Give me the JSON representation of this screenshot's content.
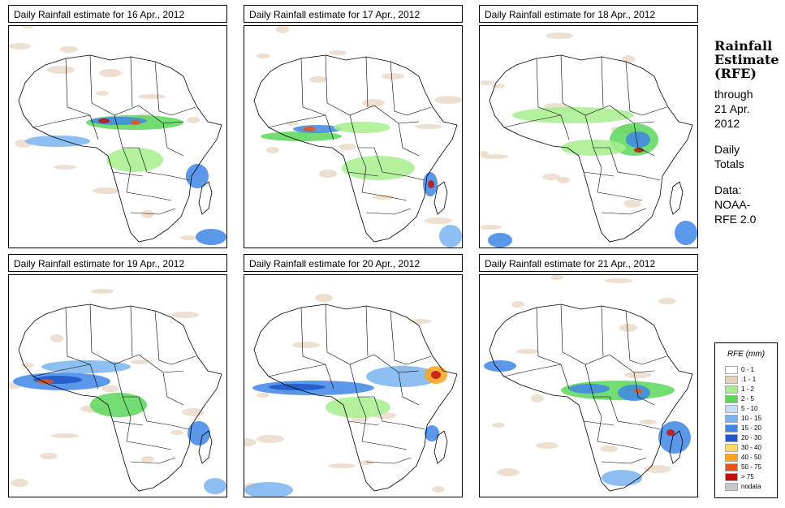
{
  "panels": [
    {
      "title": "Daily Rainfall estimate for  16 Apr., 2012"
    },
    {
      "title": "Daily Rainfall estimate for  17 Apr., 2012"
    },
    {
      "title": "Daily Rainfall estimate for  18 Apr., 2012"
    },
    {
      "title": "Daily Rainfall estimate for  19 Apr., 2012"
    },
    {
      "title": "Daily Rainfall estimate for  20 Apr., 2012"
    },
    {
      "title": "Daily Rainfall estimate for  21 Apr., 2012"
    }
  ],
  "sidebar": {
    "heading_line1": "Rainfall",
    "heading_line2": "Estimate",
    "heading_line3": "(RFE)",
    "through": "through",
    "date_line1": "21 Apr.",
    "date_line2": "2012",
    "daily": "Daily",
    "totals": "Totals",
    "data_label": "Data:",
    "source_line1": "NOAA-",
    "source_line2": "RFE 2.0"
  },
  "legend": {
    "title": "RFE (mm)",
    "items": [
      {
        "label": "0 - 1",
        "color": "#ffffff"
      },
      {
        "label": ".1 - 1",
        "color": "#e6d3bd"
      },
      {
        "label": "1 - 2",
        "color": "#a6ee8e"
      },
      {
        "label": "2 - 5",
        "color": "#5bd65b"
      },
      {
        "label": "5 - 10",
        "color": "#c7dcf5"
      },
      {
        "label": "10 - 15",
        "color": "#7ab4f0"
      },
      {
        "label": "15 - 20",
        "color": "#3e86e6"
      },
      {
        "label": "20 - 30",
        "color": "#1f55c9"
      },
      {
        "label": "30 - 40",
        "color": "#ffd966"
      },
      {
        "label": "40 - 50",
        "color": "#ffa31a"
      },
      {
        "label": "50 - 75",
        "color": "#e8531a"
      },
      {
        "label": "> 75",
        "color": "#c4100c"
      },
      {
        "label": "nodata",
        "color": "#c8c8c8"
      }
    ]
  }
}
